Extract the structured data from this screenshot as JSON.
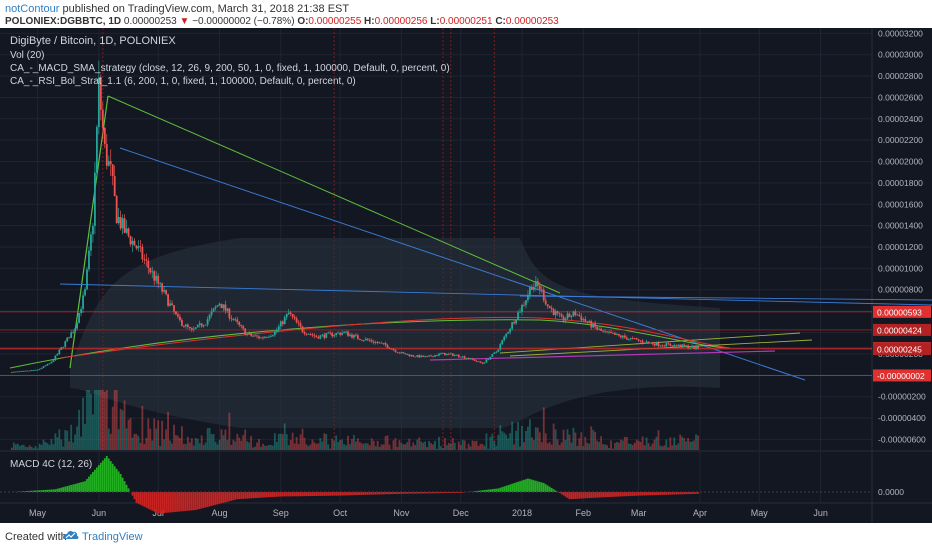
{
  "header": {
    "author": "notContour",
    "published": "published on TradingView.com, March 31, 2018 21:38 EST",
    "symbol": "POLONIEX:DGBBTC, 1D",
    "last": "0.00000253",
    "change_arrow": "▼",
    "change": "−0.00000002 (−0.78%)",
    "o_label": "O:",
    "o": "0.00000255",
    "h_label": "H:",
    "h": "0.00000256",
    "l_label": "L:",
    "l": "0.00000251",
    "c_label": "C:",
    "c": "0.00000253"
  },
  "legend": {
    "title": "DigiByte / Bitcoin, 1D, POLONIEX",
    "vol": "Vol (20)",
    "macd_strategy": "CA_-_MACD_SMA_strategy (close, 12, 26, 9, 200, 50, 1, 0, fixed, 1, 100000, Default, 0, percent, 0)",
    "rsi_strategy": "CA_-_RSI_Bol_Strat_1.1 (6, 200, 1, 0, fixed, 1, 100000, Default, 0, percent, 0)",
    "macd4c": "MACD 4C (12, 26)"
  },
  "footer": {
    "created": "Created with",
    "brand": "TradingView",
    "logo_icon": "tradingview-logo-icon"
  },
  "colors": {
    "background": "#131722",
    "up": "#26a69a",
    "down": "#ef5350",
    "grid": "#1f2433",
    "green_line": "#5fbf3a",
    "blue_line": "#3a7bd5",
    "red_line": "#e03030",
    "macd_up": "#22b022",
    "macd_down": "#c82323",
    "band_fill": "#2a3441"
  },
  "chart_data": {
    "type": "candlestick",
    "title": "DigiByte / Bitcoin, 1D, POLONIEX",
    "x_axis_ticks": [
      "May",
      "Jun",
      "Jul",
      "Aug",
      "Sep",
      "Oct",
      "Nov",
      "Dec",
      "2018",
      "Feb",
      "Mar",
      "Apr",
      "May",
      "Jun"
    ],
    "y_axis_ticks": [
      "0.00003200",
      "0.00003000",
      "0.00002800",
      "0.00002600",
      "0.00002400",
      "0.00002200",
      "0.00002000",
      "0.00001800",
      "0.00001600",
      "0.00001400",
      "0.00001200",
      "0.00001000",
      "0.00000800",
      "0.00000600",
      "0.00000400",
      "0.00000200",
      "0.00000000",
      "-0.00000200",
      "-0.00000400",
      "-0.00000600"
    ],
    "y_range": [
      -7e-06,
      3.25e-05
    ],
    "price_labels": [
      {
        "text": "0.00000593",
        "value": 5.93e-06,
        "color": "#e03030"
      },
      {
        "text": "0.00000424",
        "value": 4.24e-06,
        "color": "#b22222"
      },
      {
        "text": "0.00000253",
        "value": 2.53e-06,
        "color": "#e03030"
      },
      {
        "text": "0.00000245",
        "value": 2.45e-06,
        "color": "#b22222"
      },
      {
        "text": "-0.00000002",
        "value": -2e-08,
        "color": "#e03030"
      }
    ],
    "close_series": {
      "dates": [
        "2017-04-18",
        "2017-04-25",
        "2017-05-01",
        "2017-05-08",
        "2017-05-14",
        "2017-05-20",
        "2017-05-25",
        "2017-05-29",
        "2017-06-01",
        "2017-06-04",
        "2017-06-07",
        "2017-06-10",
        "2017-06-14",
        "2017-06-20",
        "2017-06-27",
        "2017-07-04",
        "2017-07-11",
        "2017-07-18",
        "2017-07-25",
        "2017-08-01",
        "2017-08-08",
        "2017-08-15",
        "2017-08-22",
        "2017-08-29",
        "2017-09-05",
        "2017-09-12",
        "2017-09-19",
        "2017-09-26",
        "2017-10-03",
        "2017-10-10",
        "2017-10-17",
        "2017-10-24",
        "2017-10-31",
        "2017-11-07",
        "2017-11-14",
        "2017-11-21",
        "2017-11-28",
        "2017-12-05",
        "2017-12-12",
        "2017-12-19",
        "2017-12-26",
        "2018-01-02",
        "2018-01-06",
        "2018-01-10",
        "2018-01-14",
        "2018-01-21",
        "2018-01-28",
        "2018-02-04",
        "2018-02-11",
        "2018-02-18",
        "2018-02-25",
        "2018-03-04",
        "2018-03-11",
        "2018-03-18",
        "2018-03-25",
        "2018-03-31"
      ],
      "values": [
        3e-07,
        4e-07,
        5e-07,
        1.2e-06,
        2.8e-06,
        4.5e-06,
        7.8e-06,
        1.45e-05,
        2.7e-05,
        2.1e-05,
        1.9e-05,
        1.5e-05,
        1.35e-05,
        1.2e-05,
        9.8e-06,
        7.6e-06,
        5.2e-06,
        4.1e-06,
        5e-06,
        6.8e-06,
        5.2e-06,
        3.8e-06,
        3.5e-06,
        4e-06,
        5.8e-06,
        4.2e-06,
        3.6e-06,
        3.8e-06,
        4e-06,
        3.5e-06,
        3.2e-06,
        2.8e-06,
        2.1e-06,
        1.8e-06,
        1.7e-06,
        2e-06,
        1.9e-06,
        1.6e-06,
        1.1e-06,
        2.2e-06,
        4.5e-06,
        6.8e-06,
        8.5e-06,
        8.2e-06,
        6.5e-06,
        5.2e-06,
        5.8e-06,
        4.8e-06,
        4e-06,
        3.7e-06,
        3.4e-06,
        3.1e-06,
        2.9e-06,
        2.8e-06,
        2.7e-06,
        2.53e-06
      ]
    },
    "macd_histogram": {
      "dates": [
        "2017-04-18",
        "2017-05-10",
        "2017-05-25",
        "2017-06-05",
        "2017-06-12",
        "2017-06-20",
        "2017-07-01",
        "2017-07-20",
        "2017-08-10",
        "2017-09-01",
        "2017-10-01",
        "2017-11-01",
        "2017-12-01",
        "2017-12-20",
        "2018-01-04",
        "2018-01-12",
        "2018-01-25",
        "2018-02-10",
        "2018-03-01",
        "2018-03-31"
      ],
      "values": [
        0.0,
        0.3,
        1.2,
        4.0,
        2.0,
        -1.2,
        -2.4,
        -2.0,
        -0.8,
        -0.5,
        -0.4,
        -0.2,
        -0.1,
        0.4,
        1.5,
        1.0,
        -0.8,
        -0.6,
        -0.4,
        -0.2
      ]
    },
    "macd_zero_label": "0.0000"
  }
}
